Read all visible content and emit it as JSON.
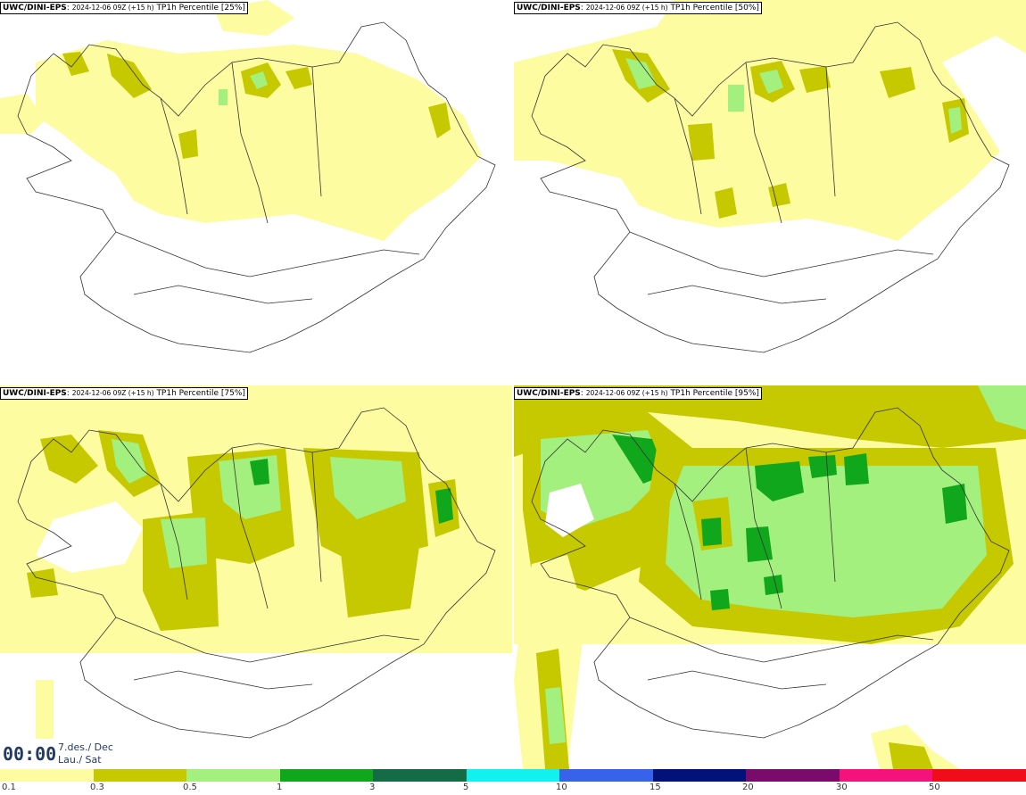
{
  "panels": [
    {
      "model": "UWC/DINI-EPS",
      "run": "2024-12-06 09Z (+15 h)",
      "label": "TP1h Percentile [25%]"
    },
    {
      "model": "UWC/DINI-EPS",
      "run": "2024-12-06 09Z (+15 h)",
      "label": "TP1h Percentile [50%]"
    },
    {
      "model": "UWC/DINI-EPS",
      "run": "2024-12-06 09Z (+15 h)",
      "label": "TP1h Percentile [75%]"
    },
    {
      "model": "UWC/DINI-EPS",
      "run": "2024-12-06 09Z (+15 h)",
      "label": "TP1h Percentile [95%]"
    }
  ],
  "valid_time": {
    "time": "00:00",
    "date_line1": "7.des./ Dec",
    "date_line2": "Lau./ Sat"
  },
  "legend": {
    "colors": [
      "#fdfca0",
      "#c6c800",
      "#a3f07f",
      "#11a71c",
      "#146c46",
      "#10f1f0",
      "#3763ea",
      "#021278",
      "#7a0a6b",
      "#f6127c",
      "#f10c1a"
    ],
    "labels": [
      "0.1",
      "0.3",
      "0.5",
      "1",
      "3",
      "5",
      "10",
      "15",
      "20",
      "30",
      "50"
    ]
  },
  "colors": {
    "coast": "#333333",
    "time_text": "#233a63"
  }
}
